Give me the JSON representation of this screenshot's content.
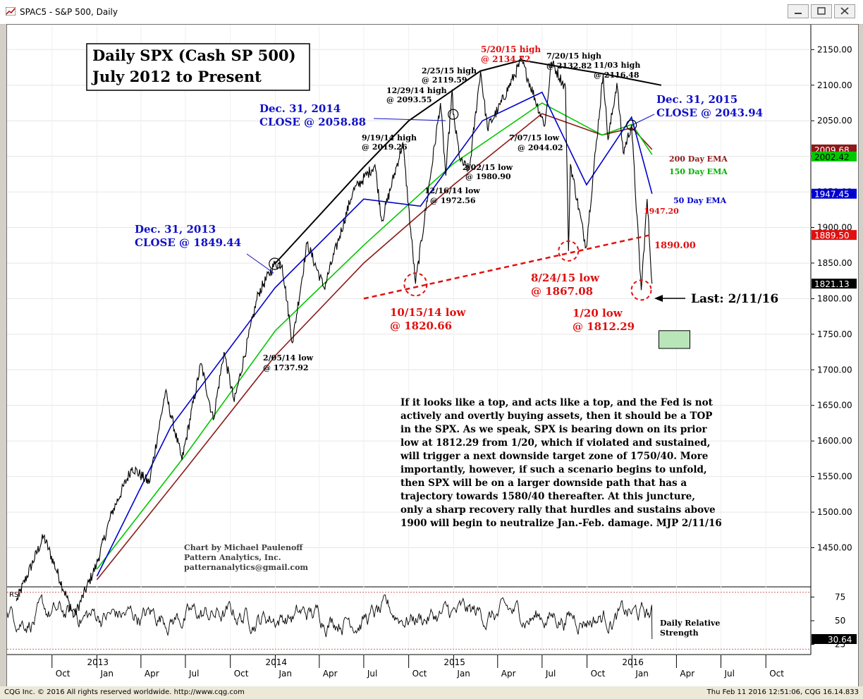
{
  "window": {
    "title": "SPAC5 - S&P 500, Daily"
  },
  "status": {
    "left": "CQG Inc. © 2016 All rights reserved worldwide. http://www.cqg.com",
    "right": "Thu Feb 11 2016 12:51:06, CQG 16.14.833"
  },
  "chart_data": {
    "type": "line",
    "title": "Daily SPX (Cash SP 500)",
    "subtitle": "July 2012 to Present",
    "ylim": [
      1395,
      2185
    ],
    "yticks": [
      1450,
      1500,
      1550,
      1600,
      1650,
      1700,
      1750,
      1800,
      1850,
      1900,
      1950,
      2000,
      2050,
      2100,
      2150
    ],
    "ytick_labels": [
      "1450.00",
      "1500.00",
      "1550.00",
      "1600.00",
      "1650.00",
      "1700.00",
      "1750.00",
      "1800.00",
      "1850.00",
      "1900.00",
      "1950.00",
      "2000.00",
      "2050.00",
      "2100.00",
      "2150.00"
    ],
    "xlim": [
      "2012-07-01",
      "2017-01-01"
    ],
    "xticks": [
      {
        "date": "2012-10-01",
        "label": "Oct"
      },
      {
        "date": "2013-01-01",
        "label": "Jan"
      },
      {
        "date": "2013-04-01",
        "label": "Apr"
      },
      {
        "date": "2013-07-01",
        "label": "Jul"
      },
      {
        "date": "2013-10-01",
        "label": "Oct"
      },
      {
        "date": "2014-01-01",
        "label": "Jan"
      },
      {
        "date": "2014-04-01",
        "label": "Apr"
      },
      {
        "date": "2014-07-01",
        "label": "Jul"
      },
      {
        "date": "2014-10-01",
        "label": "Oct"
      },
      {
        "date": "2015-01-01",
        "label": "Jan"
      },
      {
        "date": "2015-04-01",
        "label": "Apr"
      },
      {
        "date": "2015-07-01",
        "label": "Jul"
      },
      {
        "date": "2015-10-01",
        "label": "Oct"
      },
      {
        "date": "2016-01-01",
        "label": "Jan"
      },
      {
        "date": "2016-04-01",
        "label": "Apr"
      },
      {
        "date": "2016-07-01",
        "label": "Jul"
      },
      {
        "date": "2016-10-01",
        "label": "Oct"
      }
    ],
    "year_labels": [
      {
        "date": "2013-01-01",
        "label": "2013"
      },
      {
        "date": "2014-01-01",
        "label": "2014"
      },
      {
        "date": "2015-01-01",
        "label": "2015"
      },
      {
        "date": "2016-01-01",
        "label": "2016"
      }
    ],
    "price_path": [
      [
        "2012-07-20",
        1375
      ],
      [
        "2012-09-14",
        1466
      ],
      [
        "2012-11-15",
        1353
      ],
      [
        "2012-12-31",
        1426
      ],
      [
        "2013-01-31",
        1498
      ],
      [
        "2013-03-14",
        1563
      ],
      [
        "2013-04-18",
        1541
      ],
      [
        "2013-05-21",
        1669
      ],
      [
        "2013-06-24",
        1573
      ],
      [
        "2013-08-02",
        1709
      ],
      [
        "2013-08-27",
        1630
      ],
      [
        "2013-09-18",
        1725
      ],
      [
        "2013-10-09",
        1655
      ],
      [
        "2013-11-27",
        1807
      ],
      [
        "2013-12-31",
        1849
      ],
      [
        "2014-01-15",
        1848
      ],
      [
        "2014-02-05",
        1738
      ],
      [
        "2014-03-07",
        1878
      ],
      [
        "2014-04-11",
        1815
      ],
      [
        "2014-06-09",
        1951
      ],
      [
        "2014-07-24",
        1988
      ],
      [
        "2014-08-07",
        1909
      ],
      [
        "2014-09-19",
        2019
      ],
      [
        "2014-10-15",
        1821
      ],
      [
        "2014-12-05",
        2075
      ],
      [
        "2014-12-16",
        1973
      ],
      [
        "2014-12-29",
        2094
      ],
      [
        "2014-12-31",
        2059
      ],
      [
        "2015-01-15",
        1993
      ],
      [
        "2015-02-02",
        1981
      ],
      [
        "2015-02-25",
        2120
      ],
      [
        "2015-03-11",
        2040
      ],
      [
        "2015-04-02",
        2066
      ],
      [
        "2015-05-20",
        2135
      ],
      [
        "2015-06-29",
        2057
      ],
      [
        "2015-07-07",
        2044
      ],
      [
        "2015-07-20",
        2133
      ],
      [
        "2015-08-18",
        2096
      ],
      [
        "2015-08-24",
        1867
      ],
      [
        "2015-08-28",
        1989
      ],
      [
        "2015-09-29",
        1872
      ],
      [
        "2015-11-03",
        2116
      ],
      [
        "2015-11-13",
        2023
      ],
      [
        "2015-12-01",
        2103
      ],
      [
        "2015-12-14",
        2005
      ],
      [
        "2015-12-31",
        2044
      ],
      [
        "2016-01-20",
        1812
      ],
      [
        "2016-02-01",
        1940
      ],
      [
        "2016-02-11",
        1821
      ]
    ],
    "series": [
      {
        "name": "200 Day EMA",
        "color": "#8b1a1a",
        "last": "2009.68",
        "points": [
          [
            "2013-01-01",
            1405
          ],
          [
            "2013-07-01",
            1560
          ],
          [
            "2014-01-01",
            1720
          ],
          [
            "2014-07-01",
            1850
          ],
          [
            "2015-01-01",
            1960
          ],
          [
            "2015-07-01",
            2060
          ],
          [
            "2015-11-01",
            2030
          ],
          [
            "2016-01-01",
            2040
          ],
          [
            "2016-02-11",
            2009.68
          ]
        ]
      },
      {
        "name": "150 Day EMA",
        "color": "#00c800",
        "last": "2002.42",
        "points": [
          [
            "2013-01-01",
            1420
          ],
          [
            "2013-07-01",
            1580
          ],
          [
            "2014-01-01",
            1755
          ],
          [
            "2014-07-01",
            1875
          ],
          [
            "2015-01-01",
            1990
          ],
          [
            "2015-07-01",
            2075
          ],
          [
            "2015-11-01",
            2030
          ],
          [
            "2016-01-01",
            2045
          ],
          [
            "2016-02-11",
            2002.42
          ]
        ]
      },
      {
        "name": "50 Day EMA",
        "color": "#0000d0",
        "last": "1947.45",
        "points": [
          [
            "2013-01-01",
            1410
          ],
          [
            "2013-06-01",
            1620
          ],
          [
            "2013-12-31",
            1815
          ],
          [
            "2014-07-01",
            1940
          ],
          [
            "2014-10-25",
            1930
          ],
          [
            "2015-03-01",
            2050
          ],
          [
            "2015-07-01",
            2090
          ],
          [
            "2015-09-30",
            1960
          ],
          [
            "2015-12-31",
            2055
          ],
          [
            "2016-02-11",
            1947.45
          ]
        ]
      }
    ],
    "trendlines": [
      {
        "kind": "top",
        "color": "#000000",
        "points": [
          [
            "2013-12-31",
            1849
          ],
          [
            "2014-07-01",
            1985
          ],
          [
            "2014-10-01",
            2050
          ],
          [
            "2015-02-25",
            2120
          ],
          [
            "2015-05-20",
            2135
          ],
          [
            "2015-11-03",
            2116
          ],
          [
            "2016-03-01",
            2100
          ]
        ]
      },
      {
        "kind": "neckline",
        "color": "#e01010",
        "points": [
          [
            "2014-07-01",
            1800
          ],
          [
            "2016-02-11",
            1890
          ]
        ]
      }
    ],
    "price_tags": [
      {
        "value": "2009.68",
        "bg": "#8b1a1a",
        "fg": "#ffffff"
      },
      {
        "value": "2002.42",
        "bg": "#00c800",
        "fg": "#000000"
      },
      {
        "value": "1947.45",
        "bg": "#0000d0",
        "fg": "#ffffff"
      },
      {
        "value": "1889.50",
        "bg": "#e01010",
        "fg": "#ffffff"
      },
      {
        "value": "1821.13",
        "bg": "#000000",
        "fg": "#ffffff"
      }
    ],
    "annotations": {
      "legend_200": "200 Day EMA",
      "legend_150": "150 Day EMA",
      "legend_50": "50 Day EMA",
      "dec2013_l1": "Dec. 31, 2013",
      "dec2013_l2": "CLOSE @ 1849.44",
      "dec2014_l1": "Dec. 31, 2014",
      "dec2014_l2": "CLOSE @ 2058.88",
      "dec2015_l1": "Dec. 31, 2015",
      "dec2015_l2": "CLOSE @ 2043.94",
      "h0919_l1": "9/19/14 high",
      "h0919_l2": "@ 2019.26",
      "h1229_l1": "12/29/14 high",
      "h1229_l2": "@ 2093.55",
      "h0225_l1": "2/25/15 high",
      "h0225_l2": "@ 2119.59",
      "h0520_l1": "5/20/15 high",
      "h0520_l2": "@ 2134.72",
      "h0720_l1": "7/20/15 high",
      "h0720_l2": "@ 2132.82",
      "h1103_l1": "11/03 high",
      "h1103_l2": "@ 2116.48",
      "l0707_l1": "7/07/15 low",
      "l0707_l2": "@ 2044.02",
      "l0202_l1": "2/02/15 low",
      "l0202_l2": "@ 1980.90",
      "l1216_l1": "12/16/14 low",
      "l1216_l2": "@ 1972.56",
      "l0205_l1": "2/05/14 low",
      "l0205_l2": "@ 1737.92",
      "l1015_l1": "10/15/14 low",
      "l1015_l2": "@ 1820.66",
      "l0824_l1": "8/24/15 low",
      "l0824_l2": "@ 1867.08",
      "l0120_l1": "1/20 low",
      "l0120_l2": "@ 1812.29",
      "lvl1947": "1947.20",
      "lvl1890": "1890.00",
      "last": "Last: 2/11/16"
    },
    "commentary": [
      "If it looks like a top, and acts like a top, and the Fed is not",
      "actively and overtly buying assets, then it should be a TOP",
      "in the SPX. As we speak, SPX is bearing down on its prior",
      "low at 1812.29 from 1/20, which if violated and sustained,",
      "will trigger a next downside target zone of 1750/40. More",
      "importantly, however, if such a scenario begins to unfold,",
      "then SPX will be on a larger downside path that has a",
      "trajectory towards 1580/40 thereafter. At this juncture,",
      "only a sharp recovery rally that hurdles and sustains above",
      "1900 will begin to neutralize Jan.-Feb. damage. MJP 2/11/16"
    ],
    "credits": [
      "Chart by Michael Paulenoff",
      "Pattern Analytics, Inc.",
      "patternanalytics@gmail.com"
    ],
    "target_box": {
      "y_low": 1730,
      "y_high": 1755
    },
    "rsi": {
      "label": "RSI",
      "legend_l1": "Daily Relative",
      "legend_l2": "Strength",
      "ylim": [
        15,
        85
      ],
      "ticks": [
        {
          "v": 75,
          "label": "75"
        },
        {
          "v": 50,
          "label": "50"
        },
        {
          "v": 25,
          "label": "25"
        }
      ],
      "last": "30.64",
      "ref_lines": [
        80,
        20
      ]
    }
  }
}
